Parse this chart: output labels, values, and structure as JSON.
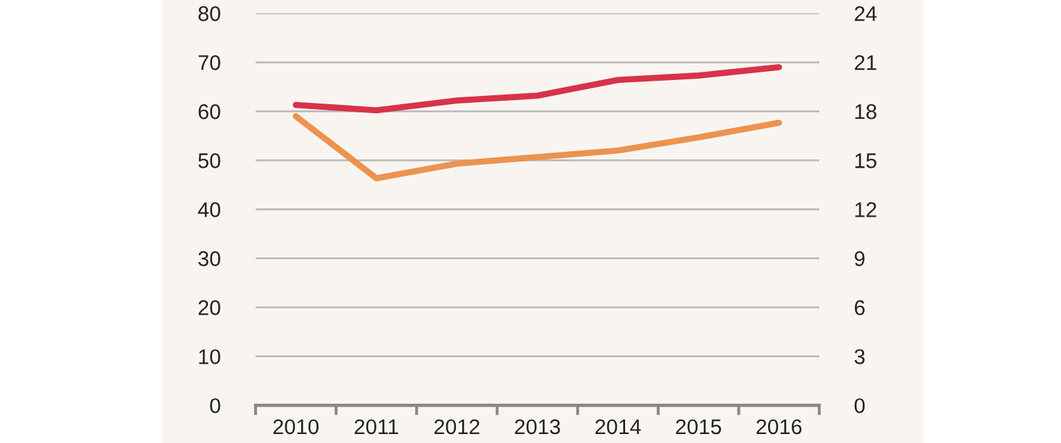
{
  "chart_data": {
    "type": "line",
    "categories": [
      "2010",
      "2011",
      "2012",
      "2013",
      "2014",
      "2015",
      "2016"
    ],
    "series": [
      {
        "color": "#d7334a",
        "values": [
          61.3,
          60.2,
          62.2,
          63.2,
          66.4,
          67.3,
          69.0
        ]
      },
      {
        "color": "#ec934f",
        "axis": "y2",
        "values": [
          17.7,
          13.9,
          14.8,
          15.2,
          15.6,
          16.4,
          17.3
        ]
      }
    ],
    "ylim": [
      0,
      80
    ],
    "yticks": [
      0,
      10,
      20,
      30,
      40,
      50,
      60,
      70,
      80
    ],
    "y2lim": [
      0,
      24
    ],
    "y2ticks": [
      0,
      3,
      6,
      9,
      12,
      15,
      18,
      21,
      24
    ],
    "grid": "y",
    "marker": "none",
    "line_style": "solid"
  }
}
